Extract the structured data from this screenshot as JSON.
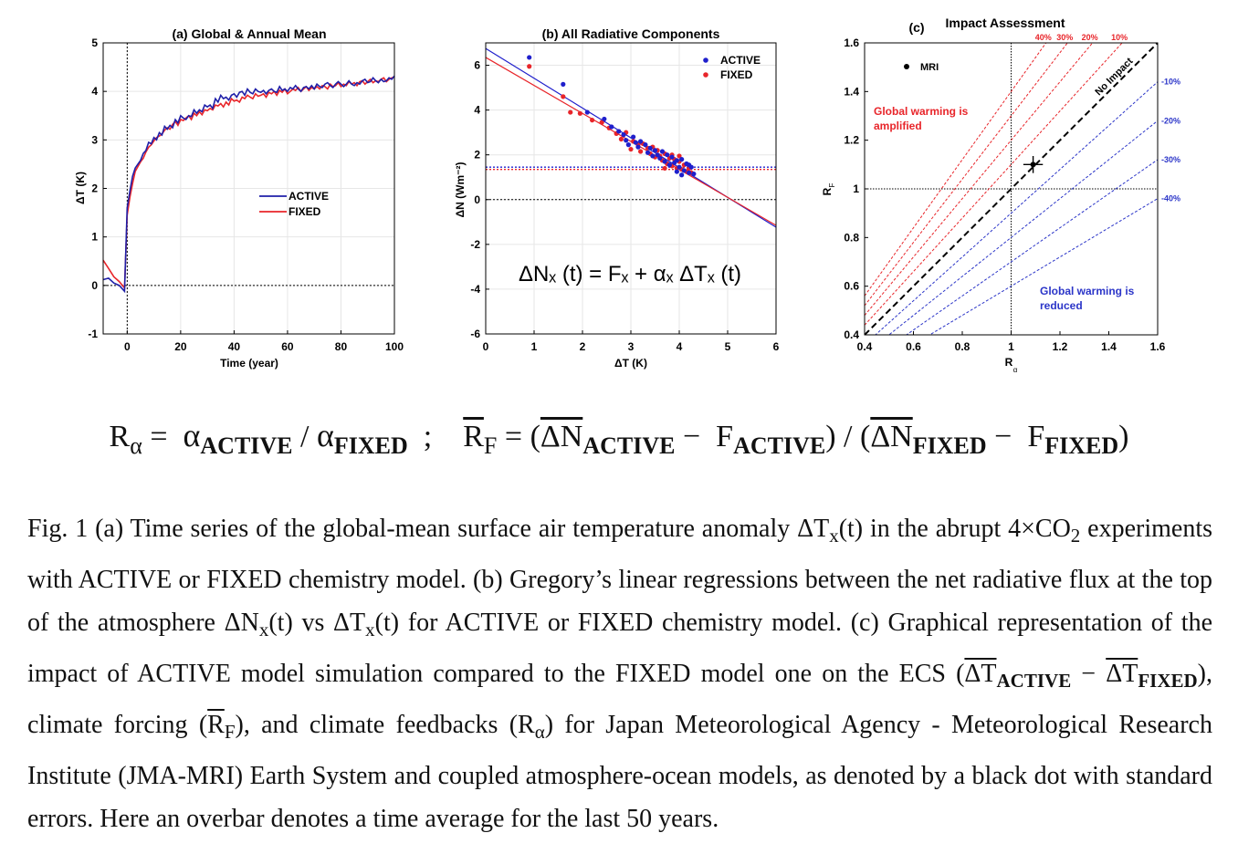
{
  "panel_a": {
    "chart_data": {
      "type": "line",
      "title": "(a) Global & Annual Mean",
      "xlabel": "Time (year)",
      "ylabel": "ΔT (K)",
      "xlim": [
        -9,
        100
      ],
      "ylim": [
        -1,
        5
      ],
      "xticks": [
        "0",
        "20",
        "40",
        "60",
        "80",
        "100"
      ],
      "yticks": [
        "-1",
        "0",
        "1",
        "2",
        "3",
        "4",
        "5"
      ],
      "legend": "center",
      "series": [
        {
          "name": "ACTIVE",
          "color": "#1f1fa8",
          "x": [
            -9,
            -7,
            -5,
            -3,
            -1,
            0,
            1,
            2,
            3,
            4,
            5,
            6,
            7,
            8,
            9,
            10,
            11,
            12,
            13,
            14,
            15,
            16,
            17,
            18,
            19,
            20,
            21,
            22,
            23,
            24,
            25,
            26,
            27,
            28,
            29,
            30,
            31,
            32,
            33,
            34,
            35,
            36,
            37,
            38,
            39,
            40,
            41,
            42,
            43,
            44,
            45,
            46,
            47,
            48,
            49,
            50,
            51,
            52,
            53,
            54,
            55,
            56,
            57,
            58,
            59,
            60,
            61,
            62,
            63,
            64,
            65,
            66,
            67,
            68,
            69,
            70,
            71,
            72,
            73,
            74,
            75,
            76,
            77,
            78,
            79,
            80,
            81,
            82,
            83,
            84,
            85,
            86,
            87,
            88,
            89,
            90,
            91,
            92,
            93,
            94,
            95,
            96,
            97,
            98,
            99,
            100
          ],
          "y": [
            0.12,
            0.15,
            0.05,
            0.0,
            -0.12,
            1.6,
            1.95,
            2.25,
            2.42,
            2.5,
            2.58,
            2.72,
            2.78,
            2.95,
            2.92,
            3.05,
            3.0,
            3.15,
            3.1,
            3.28,
            3.22,
            3.3,
            3.25,
            3.42,
            3.35,
            3.5,
            3.45,
            3.42,
            3.5,
            3.48,
            3.62,
            3.55,
            3.62,
            3.58,
            3.72,
            3.68,
            3.72,
            3.65,
            3.85,
            3.78,
            3.92,
            3.85,
            3.88,
            3.82,
            3.92,
            3.95,
            3.88,
            3.98,
            4.0,
            3.92,
            4.05,
            3.98,
            3.95,
            4.05,
            4.0,
            3.98,
            4.02,
            3.95,
            4.02,
            4.05,
            4.0,
            3.98,
            4.1,
            4.02,
            4.05,
            4.0,
            4.08,
            4.05,
            4.12,
            4.05,
            4.0,
            4.08,
            4.1,
            4.05,
            4.12,
            4.05,
            4.15,
            4.1,
            4.08,
            4.15,
            4.18,
            4.12,
            4.08,
            4.15,
            4.2,
            4.15,
            4.1,
            4.15,
            4.22,
            4.15,
            4.12,
            4.18,
            4.15,
            4.22,
            4.25,
            4.18,
            4.2,
            4.28,
            4.22,
            4.18,
            4.25,
            4.2,
            4.22,
            4.28,
            4.25,
            4.32
          ]
        },
        {
          "name": "FIXED",
          "color": "#e8252a",
          "x": [
            -9,
            -7,
            -5,
            -3,
            -1,
            0,
            1,
            2,
            3,
            4,
            5,
            6,
            7,
            8,
            9,
            10,
            11,
            12,
            13,
            14,
            15,
            16,
            17,
            18,
            19,
            20,
            21,
            22,
            23,
            24,
            25,
            26,
            27,
            28,
            29,
            30,
            31,
            32,
            33,
            34,
            35,
            36,
            37,
            38,
            39,
            40,
            41,
            42,
            43,
            44,
            45,
            46,
            47,
            48,
            49,
            50,
            51,
            52,
            53,
            54,
            55,
            56,
            57,
            58,
            59,
            60,
            61,
            62,
            63,
            64,
            65,
            66,
            67,
            68,
            69,
            70,
            71,
            72,
            73,
            74,
            75,
            76,
            77,
            78,
            79,
            80,
            81,
            82,
            83,
            84,
            85,
            86,
            87,
            88,
            89,
            90,
            91,
            92,
            93,
            94,
            95,
            96,
            97,
            98,
            99,
            100
          ],
          "y": [
            0.52,
            0.35,
            0.18,
            0.08,
            -0.05,
            1.45,
            1.82,
            2.1,
            2.35,
            2.45,
            2.55,
            2.62,
            2.75,
            2.85,
            2.9,
            2.98,
            3.05,
            3.08,
            3.12,
            3.2,
            3.25,
            3.22,
            3.32,
            3.38,
            3.3,
            3.42,
            3.4,
            3.45,
            3.5,
            3.42,
            3.55,
            3.5,
            3.58,
            3.52,
            3.62,
            3.6,
            3.65,
            3.62,
            3.72,
            3.7,
            3.75,
            3.68,
            3.78,
            3.72,
            3.85,
            3.8,
            3.82,
            3.78,
            3.88,
            3.85,
            3.92,
            3.88,
            3.85,
            3.95,
            3.9,
            3.92,
            3.95,
            3.88,
            3.98,
            3.95,
            4.0,
            3.92,
            4.02,
            3.98,
            4.05,
            3.95,
            4.0,
            4.05,
            4.02,
            4.08,
            4.0,
            4.05,
            4.1,
            4.02,
            4.08,
            4.05,
            4.1,
            4.05,
            4.12,
            4.1,
            4.05,
            4.15,
            4.1,
            4.12,
            4.18,
            4.1,
            4.15,
            4.12,
            4.2,
            4.15,
            4.18,
            4.12,
            4.2,
            4.22,
            4.15,
            4.2,
            4.25,
            4.18,
            4.22,
            4.2,
            4.25,
            4.28,
            4.2,
            4.25,
            4.28,
            4.3
          ]
        }
      ],
      "hlines": [
        0
      ],
      "vlines": [
        0
      ]
    }
  },
  "panel_b": {
    "chart_data": {
      "type": "scatter",
      "title": "(b)  All Radiative Components",
      "xlabel": "ΔT (K)",
      "ylabel": "ΔN (Wm⁻²)",
      "xlim": [
        0,
        6
      ],
      "ylim": [
        -6,
        7
      ],
      "xticks": [
        "0",
        "1",
        "2",
        "3",
        "4",
        "5",
        "6"
      ],
      "yticks": [
        "-6",
        "-4",
        "-2",
        "0",
        "2",
        "4",
        "6"
      ],
      "legend": "top-right",
      "annotation": "ΔNₓ (t) = Fₓ + αₓ ΔTₓ (t)",
      "series": [
        {
          "name": "ACTIVE",
          "color": "#1f1fcc",
          "points": [
            [
              0.9,
              6.35
            ],
            [
              1.6,
              5.15
            ],
            [
              2.1,
              3.9
            ],
            [
              2.45,
              3.6
            ],
            [
              2.6,
              3.25
            ],
            [
              2.75,
              3.05
            ],
            [
              2.85,
              2.9
            ],
            [
              2.9,
              2.65
            ],
            [
              2.95,
              2.45
            ],
            [
              3.05,
              2.8
            ],
            [
              3.1,
              2.55
            ],
            [
              3.15,
              2.35
            ],
            [
              3.2,
              2.6
            ],
            [
              3.3,
              2.45
            ],
            [
              3.35,
              2.1
            ],
            [
              3.4,
              2.3
            ],
            [
              3.45,
              1.95
            ],
            [
              3.5,
              2.2
            ],
            [
              3.55,
              2.0
            ],
            [
              3.6,
              1.85
            ],
            [
              3.65,
              2.15
            ],
            [
              3.7,
              1.7
            ],
            [
              3.75,
              2.0
            ],
            [
              3.8,
              1.55
            ],
            [
              3.85,
              1.9
            ],
            [
              3.9,
              1.65
            ],
            [
              3.95,
              1.75
            ],
            [
              4.0,
              1.45
            ],
            [
              4.05,
              1.8
            ],
            [
              4.1,
              1.3
            ],
            [
              4.15,
              1.6
            ],
            [
              4.2,
              1.2
            ],
            [
              4.25,
              1.45
            ],
            [
              4.3,
              1.15
            ],
            [
              4.05,
              1.1
            ],
            [
              3.95,
              1.25
            ],
            [
              4.2,
              1.55
            ]
          ],
          "fit": {
            "slope": -1.33,
            "intercept": 6.75
          }
        },
        {
          "name": "FIXED",
          "color": "#e8252a",
          "points": [
            [
              0.9,
              5.95
            ],
            [
              1.6,
              4.6
            ],
            [
              1.75,
              3.9
            ],
            [
              1.95,
              3.85
            ],
            [
              2.2,
              3.55
            ],
            [
              2.4,
              3.45
            ],
            [
              2.55,
              3.2
            ],
            [
              2.7,
              2.95
            ],
            [
              2.8,
              2.7
            ],
            [
              2.9,
              3.0
            ],
            [
              3.0,
              2.25
            ],
            [
              3.05,
              2.6
            ],
            [
              3.15,
              2.45
            ],
            [
              3.2,
              2.15
            ],
            [
              3.25,
              2.5
            ],
            [
              3.35,
              2.3
            ],
            [
              3.4,
              2.05
            ],
            [
              3.45,
              2.35
            ],
            [
              3.5,
              1.9
            ],
            [
              3.55,
              2.2
            ],
            [
              3.6,
              1.95
            ],
            [
              3.65,
              1.75
            ],
            [
              3.7,
              2.05
            ],
            [
              3.75,
              1.6
            ],
            [
              3.8,
              1.85
            ],
            [
              3.85,
              1.5
            ],
            [
              3.9,
              1.8
            ],
            [
              3.95,
              1.4
            ],
            [
              4.0,
              1.7
            ],
            [
              4.05,
              1.35
            ],
            [
              4.1,
              1.55
            ],
            [
              4.15,
              1.25
            ],
            [
              4.2,
              1.4
            ],
            [
              4.25,
              1.2
            ],
            [
              3.85,
              2.0
            ],
            [
              4.0,
              1.95
            ],
            [
              3.7,
              1.4
            ]
          ],
          "fit": {
            "slope": -1.25,
            "intercept": 6.35
          }
        }
      ],
      "hlines": [
        0,
        1.45,
        1.35
      ]
    }
  },
  "panel_c": {
    "chart_data": {
      "type": "scatter",
      "title_prefix": "(c)",
      "title": "Impact Assessment",
      "xlabel": "R",
      "xlabel_sub": "α",
      "ylabel": "R",
      "ylabel_sub": "F",
      "xlim": [
        0.4,
        1.6
      ],
      "ylim": [
        0.4,
        1.6
      ],
      "xticks": [
        "0.4",
        "0.6",
        "0.8",
        "1",
        "1.2",
        "1.4",
        "1.6"
      ],
      "yticks": [
        "0.4",
        "0.6",
        "0.8",
        "1",
        "1.2",
        "1.4",
        "1.6"
      ],
      "series": [
        {
          "name": "MRI",
          "color": "#000000",
          "points": [
            [
              1.09,
              1.1
            ]
          ],
          "xerr": 0.04,
          "yerr": 0.035
        }
      ],
      "identity_label": "No Impact",
      "amplified_labels": [
        "40%",
        "30%",
        "20%",
        "10%"
      ],
      "amplified_factors": [
        1.4,
        1.3,
        1.2,
        1.1
      ],
      "reduced_labels": [
        "-10%",
        "-20%",
        "-30%",
        "-40%"
      ],
      "reduced_factors": [
        0.9,
        0.8,
        0.7,
        0.6
      ],
      "amplified_text": [
        "Global warming is",
        "amplified"
      ],
      "reduced_text": [
        "Global warming is",
        "reduced"
      ],
      "colors": {
        "amplified": "#e8252a",
        "reduced": "#2b35c8",
        "identity": "#000000"
      }
    }
  },
  "formula": {
    "r_alpha": "R",
    "r_alpha_sub": "α",
    "eq1": "=",
    "alpha1": "α",
    "active_sub": "ACTIVE",
    "slash": "/",
    "alpha2": "α",
    "fixed_sub": "FIXED",
    "sep": ";",
    "r_f": "R",
    "r_f_sub": "F",
    "eq2": "=",
    "paren_open": "(",
    "dn1": "ΔN",
    "minus1": "−",
    "f1": "F",
    "paren_close": ")",
    "slash2": "/",
    "paren_open2": "(",
    "dn2": "ΔN",
    "minus2": "−",
    "f2": "F",
    "paren_close2": ")"
  },
  "caption": {
    "p1": "Fig. 1 (a) Time series of the global-mean surface air temperature anomaly ΔT",
    "sub_x1": "x",
    "p2": "(t) in the abrupt 4×CO",
    "sub_2": "2",
    "p3": " experiments with ACTIVE or FIXED chemistry model. (b) Gregory’s linear regressions between the net radiative flux at the top of the atmosphere ΔN",
    "sub_x2": "x",
    "p4": "(t) vs ΔT",
    "sub_x3": "x",
    "p5": "(t) for ACTIVE or FIXED chemistry model. (c) Graphical representation of the impact of ACTIVE model simulation compared to the FIXED model one on the ECS (",
    "dt1": "ΔT",
    "sub_active": "ACTIVE",
    "minus": " − ",
    "dt2": "ΔT",
    "sub_fixed": "FIXED",
    "p6": "), climate forcing (",
    "rf": "R",
    "rf_sub": "F",
    "p7": "), and climate feedbacks (R",
    "ra_sub": "α",
    "p8": ") for Japan Meteorological Agency - Meteorological Research Institute (JMA-MRI) Earth System and coupled atmosphere-ocean models, as denoted by a black dot with standard errors. Here an overbar denotes a time average for the last 50 years."
  }
}
